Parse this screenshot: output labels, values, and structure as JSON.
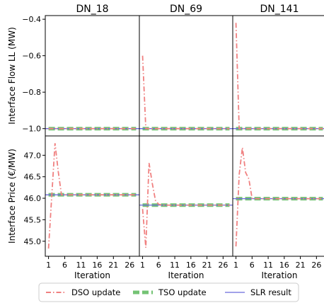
{
  "chart_data": {
    "type": "line",
    "panels": [
      "DN_18",
      "DN_69",
      "DN_141"
    ],
    "xlabel": "Iteration",
    "xticks": [
      1,
      6,
      11,
      16,
      21,
      26
    ],
    "xlim": [
      0,
      29
    ],
    "legend": {
      "placement": "bottom",
      "entries": [
        "DSO update",
        "TSO update",
        "SLR result"
      ]
    },
    "colors": {
      "dso": "#f08080",
      "tso": "#5cb85c",
      "slr": "#6b6bdc"
    },
    "rows": [
      {
        "ylabel": "Interface Flow LL (MW)",
        "ylim": [
          -1.04,
          -0.38
        ],
        "yticks": [
          -1.0,
          -0.8,
          -0.6,
          -0.4
        ],
        "ytick_labels": [
          "−1.0",
          "−0.8",
          "−0.6",
          "−0.4"
        ],
        "series": {
          "DN_18": {
            "dso": [
              -1.0,
              -1.0,
              -1.0,
              -1.0,
              -1.0,
              -1.0,
              -1.0,
              -1.0,
              -1.0,
              -1.0,
              -1.0,
              -1.0,
              -1.0,
              -1.0,
              -1.0,
              -1.0,
              -1.0,
              -1.0,
              -1.0,
              -1.0,
              -1.0,
              -1.0,
              -1.0,
              -1.0,
              -1.0,
              -1.0,
              -1.0,
              -1.0
            ],
            "tso_level": -1.0,
            "slr_level": -1.0
          },
          "DN_69": {
            "dso": [
              -0.6,
              -1.0,
              -1.0,
              -1.0,
              -1.0,
              -1.0,
              -1.0,
              -1.0,
              -1.0,
              -1.0,
              -1.0,
              -1.0,
              -1.0,
              -1.0,
              -1.0,
              -1.0,
              -1.0,
              -1.0,
              -1.0,
              -1.0,
              -1.0,
              -1.0,
              -1.0,
              -1.0,
              -1.0,
              -1.0,
              -1.0,
              -1.0
            ],
            "tso_level": -1.0,
            "slr_level": -1.0
          },
          "DN_141": {
            "dso": [
              -0.42,
              -1.0,
              -1.0,
              -1.0,
              -1.0,
              -1.0,
              -1.0,
              -1.0,
              -1.0,
              -1.0,
              -1.0,
              -1.0,
              -1.0,
              -1.0,
              -1.0,
              -1.0,
              -1.0,
              -1.0,
              -1.0,
              -1.0,
              -1.0,
              -1.0,
              -1.0,
              -1.0,
              -1.0,
              -1.0,
              -1.0,
              -1.0
            ],
            "tso_level": -1.0,
            "slr_level": -1.0
          }
        }
      },
      {
        "ylabel": "Interface Price (€/MW)",
        "ylim": [
          44.65,
          47.45
        ],
        "yticks": [
          45.0,
          45.5,
          46.0,
          46.5,
          47.0
        ],
        "ytick_labels": [
          "45.0",
          "45.5",
          "46.0",
          "46.5",
          "47.0"
        ],
        "series": {
          "DN_18": {
            "dso": [
              44.83,
              46.05,
              47.28,
              46.62,
              46.08,
              46.08,
              46.08,
              46.08,
              46.08,
              46.08,
              46.08,
              46.08,
              46.08,
              46.08,
              46.08,
              46.08,
              46.08,
              46.08,
              46.08,
              46.08,
              46.08,
              46.08,
              46.08,
              46.08,
              46.08,
              46.08,
              46.08,
              46.08
            ],
            "tso_level": 46.08,
            "slr_level": 46.08
          },
          "DN_69": {
            "dso": [
              45.75,
              44.85,
              46.82,
              46.35,
              45.95,
              45.86,
              45.84,
              45.84,
              45.84,
              45.84,
              45.84,
              45.84,
              45.84,
              45.84,
              45.84,
              45.84,
              45.84,
              45.84,
              45.84,
              45.84,
              45.84,
              45.84,
              45.84,
              45.84,
              45.84,
              45.84,
              45.84,
              45.84
            ],
            "tso_level": 45.84,
            "slr_level": 45.84
          },
          "DN_141": {
            "dso": [
              44.88,
              46.55,
              47.18,
              46.6,
              46.45,
              46.0,
              45.99,
              45.99,
              45.99,
              45.99,
              45.99,
              45.99,
              45.99,
              45.99,
              45.99,
              45.99,
              45.99,
              45.99,
              45.99,
              45.99,
              45.99,
              45.99,
              45.99,
              45.99,
              45.99,
              45.99,
              45.99,
              45.99
            ],
            "tso_level": 45.99,
            "slr_level": 45.99
          }
        }
      }
    ]
  }
}
